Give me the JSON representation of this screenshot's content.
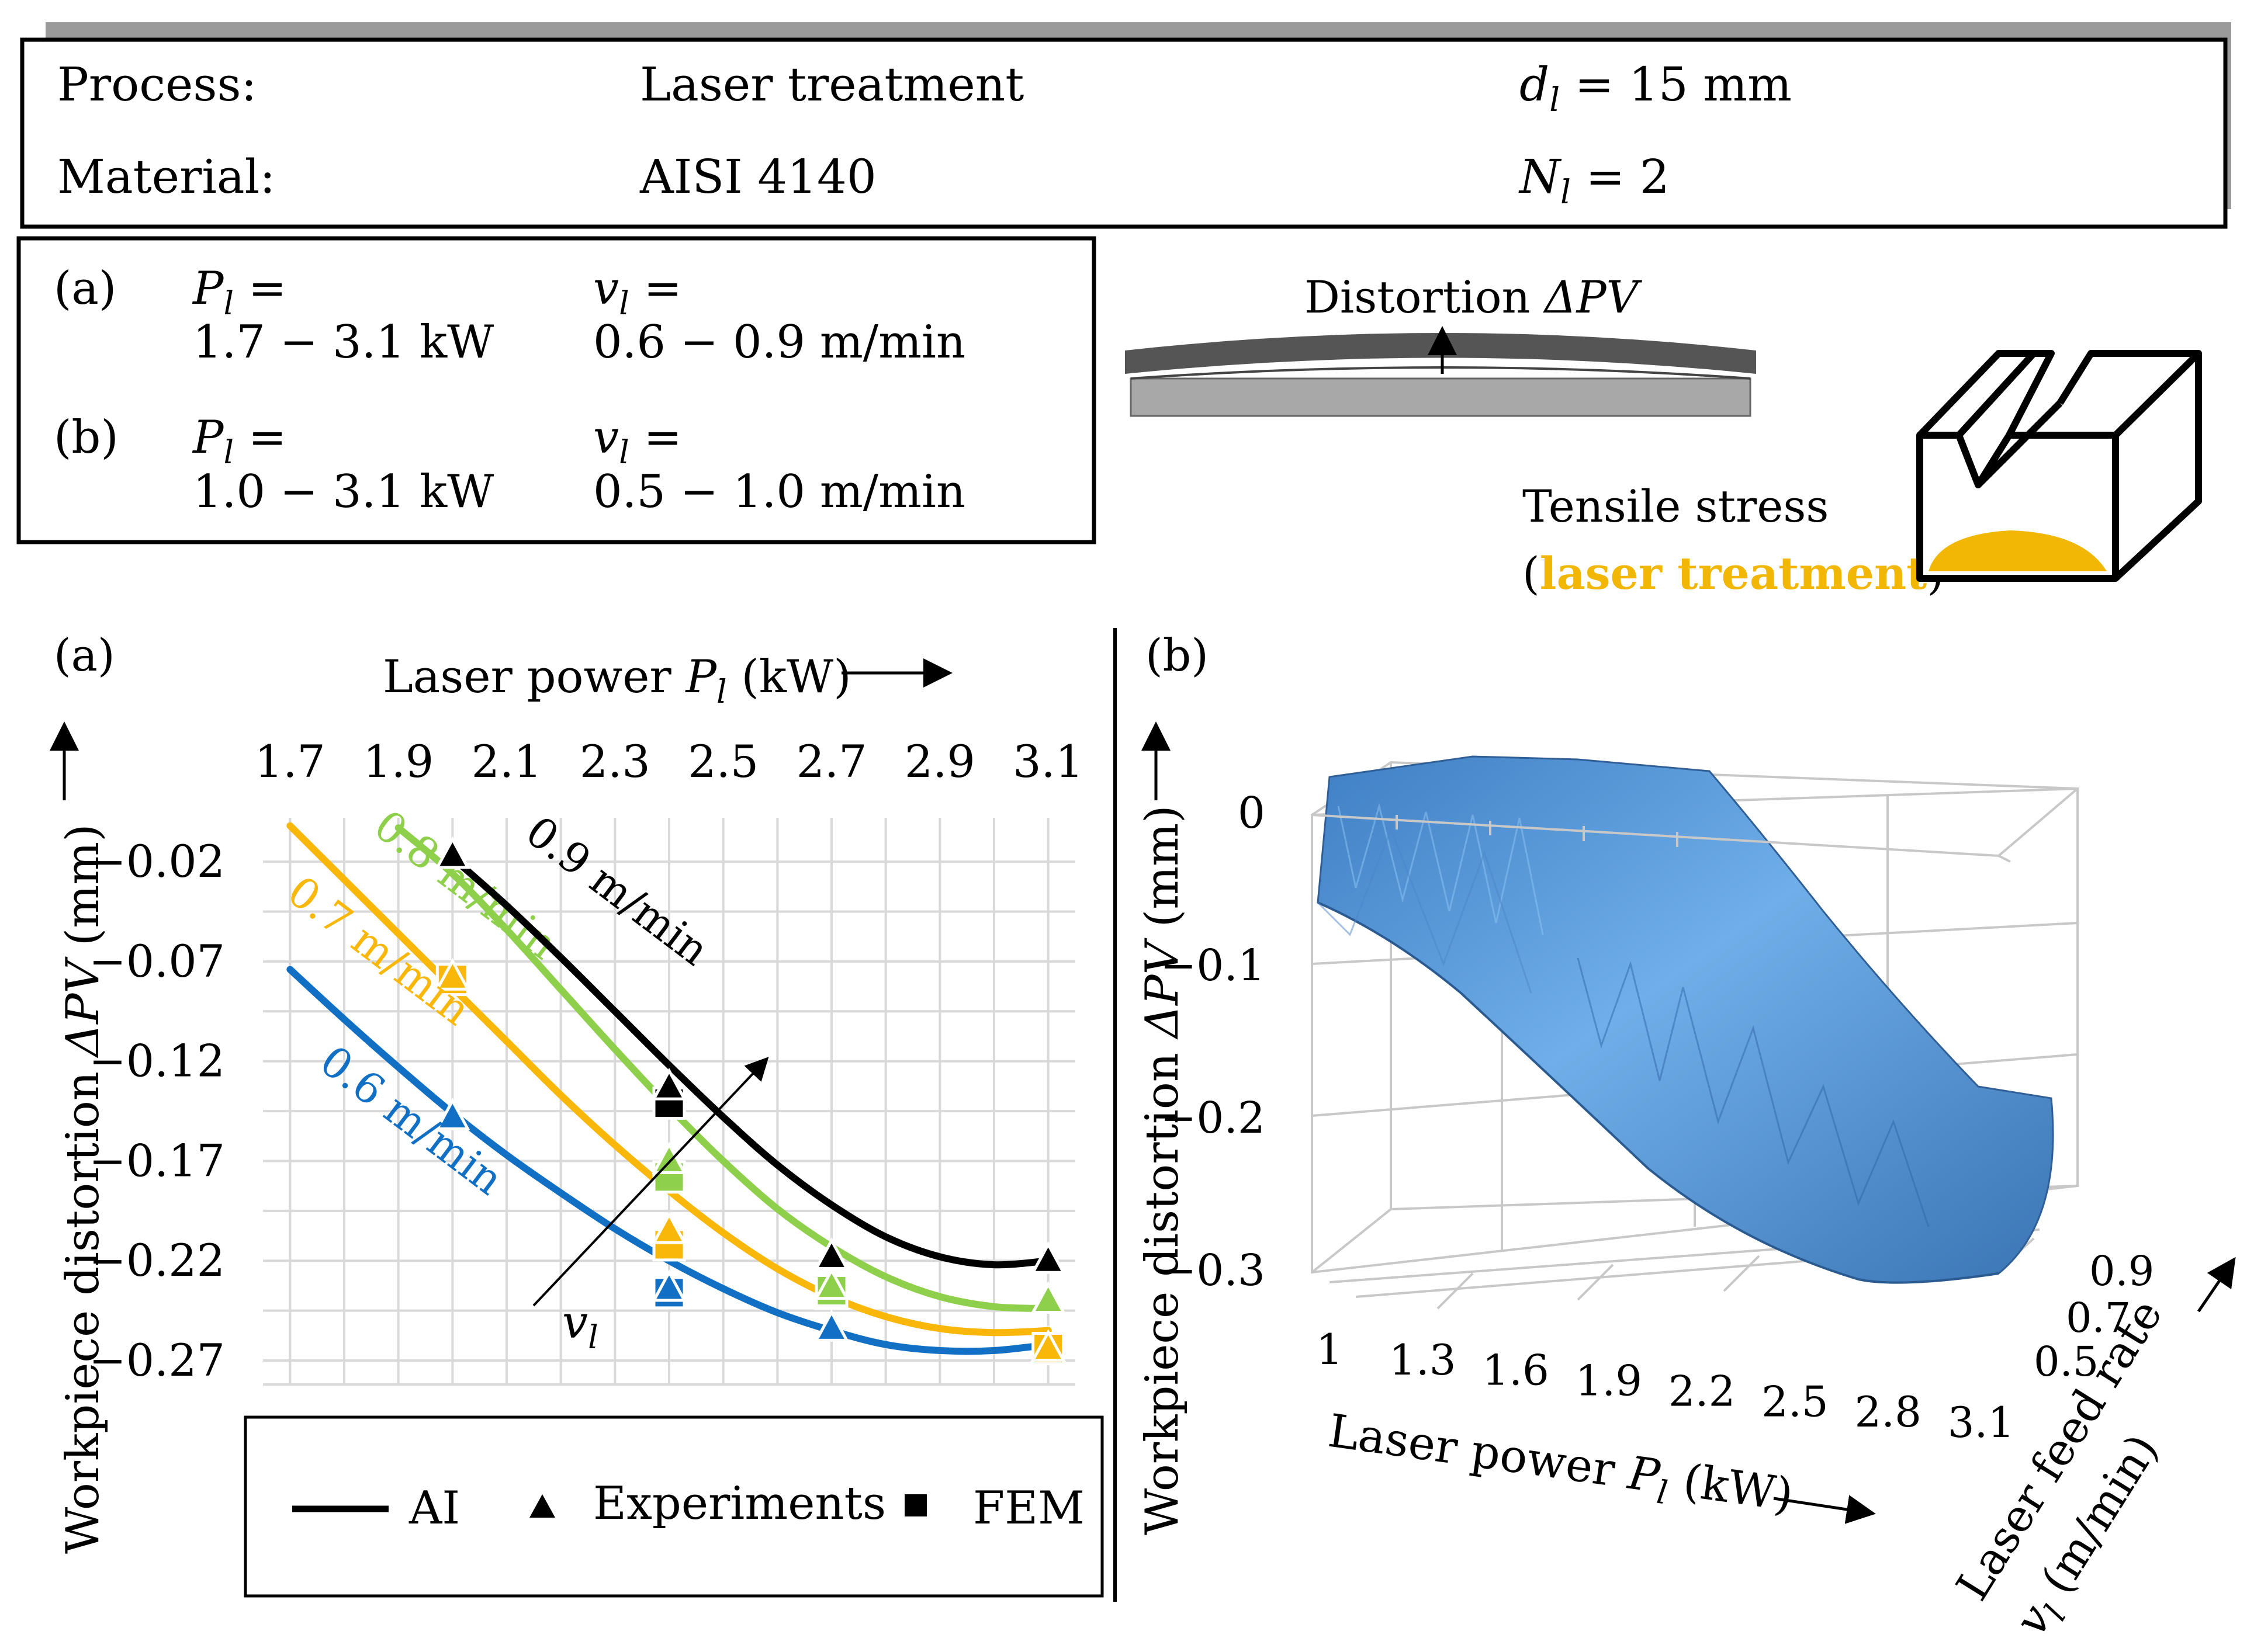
{
  "header": {
    "process_label": "Process:",
    "process_value": "Laser treatment",
    "diameter_symbol": "d",
    "diameter_sub": "l",
    "diameter_value": " = 15 mm",
    "material_label": "Material:",
    "material_value": "AISI 4140",
    "passes_symbol": "N",
    "passes_sub": "l",
    "passes_value": " = 2"
  },
  "params": {
    "a": {
      "label": "(a)",
      "power_symbol": "P",
      "power_sub": "l",
      "power_eq": " =",
      "power_range": "1.7 − 3.1 kW",
      "speed_symbol": "v",
      "speed_sub": "l",
      "speed_eq": " =",
      "speed_range": "0.6 − 0.9 m/min"
    },
    "b": {
      "label": "(b)",
      "power_symbol": "P",
      "power_sub": "l",
      "power_eq": " =",
      "power_range": "1.0 − 3.1 kW",
      "speed_symbol": "v",
      "speed_sub": "l",
      "speed_eq": " =",
      "speed_range": "0.5 − 1.0 m/min"
    }
  },
  "schematic": {
    "distortion_label": "Distortion ",
    "distortion_symbol": "ΔPV",
    "tensile_label": "Tensile stress",
    "paren_open": "(",
    "laser_label": "laser treatment",
    "paren_close": ")",
    "accent_color": "#F2B705",
    "bar_dark": "#555555",
    "bar_light": "#A8A8A8"
  },
  "chart_data": [
    {
      "type": "line",
      "panel": "(a)",
      "x_label_prefix": "Laser power ",
      "x_symbol": "P",
      "x_sub": "l",
      "x_unit": " (kW)",
      "y_label_prefix": "Workpiece distortion ",
      "y_symbol": "ΔPV",
      "y_unit": " (mm)",
      "x_ticks": [
        "1.7",
        "1.9",
        "2.1",
        "2.3",
        "2.5",
        "2.7",
        "2.9",
        "3.1"
      ],
      "y_ticks": [
        "−0.02",
        "−0.07",
        "−0.12",
        "−0.17",
        "−0.22",
        "−0.27"
      ],
      "xlim": [
        1.65,
        3.15
      ],
      "ylim": [
        -0.282,
        0.002
      ],
      "grid": true,
      "legend_position": "bottom",
      "arrow_label_symbol": "v",
      "arrow_label_sub": "l",
      "series": [
        {
          "name": "0.6 m/min",
          "color": "#1170C4",
          "label_pos": [
            1.75,
            -0.123
          ],
          "label_angle": 37,
          "ai": [
            [
              1.7,
              -0.074
            ],
            [
              1.8,
              -0.099
            ],
            [
              1.9,
              -0.123
            ],
            [
              2.0,
              -0.146
            ],
            [
              2.1,
              -0.167
            ],
            [
              2.2,
              -0.186
            ],
            [
              2.3,
              -0.204
            ],
            [
              2.4,
              -0.22
            ],
            [
              2.5,
              -0.234
            ],
            [
              2.6,
              -0.246
            ],
            [
              2.7,
              -0.255
            ],
            [
              2.8,
              -0.262
            ],
            [
              2.9,
              -0.265
            ],
            [
              3.0,
              -0.265
            ],
            [
              3.1,
              -0.262
            ]
          ],
          "experiments": [
            [
              2.0,
              -0.148
            ],
            [
              2.4,
              -0.234
            ],
            [
              2.7,
              -0.254
            ],
            [
              3.1,
              -0.262
            ]
          ],
          "fem": [
            [
              2.4,
              -0.236
            ]
          ]
        },
        {
          "name": "0.7 m/min",
          "color": "#F9B70A",
          "label_pos": [
            1.69,
            -0.038
          ],
          "label_angle": 37,
          "ai": [
            [
              1.7,
              -0.002
            ],
            [
              1.8,
              -0.029
            ],
            [
              1.9,
              -0.056
            ],
            [
              2.0,
              -0.083
            ],
            [
              2.1,
              -0.11
            ],
            [
              2.2,
              -0.137
            ],
            [
              2.3,
              -0.162
            ],
            [
              2.4,
              -0.185
            ],
            [
              2.5,
              -0.206
            ],
            [
              2.6,
              -0.224
            ],
            [
              2.7,
              -0.238
            ],
            [
              2.8,
              -0.248
            ],
            [
              2.9,
              -0.254
            ],
            [
              3.0,
              -0.256
            ],
            [
              3.1,
              -0.255
            ]
          ],
          "experiments": [
            [
              2.0,
              -0.078
            ],
            [
              2.4,
              -0.205
            ],
            [
              2.7,
              -0.238
            ],
            [
              3.1,
              -0.264
            ]
          ],
          "fem": [
            [
              2.0,
              -0.079
            ],
            [
              2.4,
              -0.212
            ],
            [
              2.7,
              -0.234
            ],
            [
              3.1,
              -0.264
            ]
          ]
        },
        {
          "name": "0.8 m/min",
          "color": "#8ED04B",
          "label_pos": [
            1.85,
            -0.005
          ],
          "label_angle": 37,
          "ai": [
            [
              1.9,
              -0.003
            ],
            [
              2.0,
              -0.026
            ],
            [
              2.1,
              -0.054
            ],
            [
              2.2,
              -0.084
            ],
            [
              2.3,
              -0.114
            ],
            [
              2.4,
              -0.143
            ],
            [
              2.5,
              -0.17
            ],
            [
              2.6,
              -0.194
            ],
            [
              2.7,
              -0.213
            ],
            [
              2.8,
              -0.228
            ],
            [
              2.9,
              -0.238
            ],
            [
              3.0,
              -0.243
            ],
            [
              3.1,
              -0.244
            ]
          ],
          "experiments": [
            [
              2.4,
              -0.17
            ],
            [
              2.7,
              -0.233
            ],
            [
              3.1,
              -0.24
            ]
          ],
          "fem": [
            [
              2.4,
              -0.178
            ],
            [
              2.7,
              -0.235
            ]
          ]
        },
        {
          "name": "0.9 m/min",
          "color": "#000000",
          "label_pos": [
            2.13,
            -0.008
          ],
          "label_angle": 37,
          "ai": [
            [
              2.0,
              -0.018
            ],
            [
              2.1,
              -0.042
            ],
            [
              2.2,
              -0.068
            ],
            [
              2.3,
              -0.095
            ],
            [
              2.4,
              -0.122
            ],
            [
              2.5,
              -0.148
            ],
            [
              2.6,
              -0.172
            ],
            [
              2.7,
              -0.192
            ],
            [
              2.8,
              -0.208
            ],
            [
              2.9,
              -0.218
            ],
            [
              3.0,
              -0.222
            ],
            [
              3.1,
              -0.22
            ]
          ],
          "experiments": [
            [
              2.0,
              -0.017
            ],
            [
              2.4,
              -0.133
            ],
            [
              2.7,
              -0.218
            ],
            [
              3.1,
              -0.22
            ]
          ],
          "fem": [
            [
              2.4,
              -0.141
            ]
          ]
        }
      ],
      "legend": [
        {
          "label": "AI",
          "kind": "line"
        },
        {
          "label": "Experiments",
          "kind": "triangle"
        },
        {
          "label": "FEM",
          "kind": "square"
        }
      ]
    },
    {
      "type": "surface3d",
      "panel": "(b)",
      "x_label_prefix": "Laser power ",
      "x_symbol": "P",
      "x_sub": "l",
      "x_unit": " (kW)",
      "y_label_line1": "Laser feed rate",
      "y_label_symbol": "v",
      "y_label_sub": "l",
      "y_label_unit": " (m/min)",
      "z_label_prefix": "Workpiece distortion ",
      "z_symbol": "ΔPV",
      "z_unit": " (mm)",
      "x_ticks": [
        "1",
        "1.3",
        "1.6",
        "1.9",
        "2.2",
        "2.5",
        "2.8",
        "3.1"
      ],
      "y_ticks": [
        "0.5",
        "0.7",
        "0.9"
      ],
      "z_ticks": [
        "0",
        "−0.1",
        "−0.2",
        "−0.3"
      ],
      "xlim": [
        1.0,
        3.1
      ],
      "zlim": [
        -0.3,
        0.0
      ],
      "grid": true,
      "surface_color": "#5E9AD6",
      "profile_front": [
        [
          1.0,
          -0.06
        ],
        [
          1.3,
          -0.08
        ],
        [
          1.6,
          -0.1
        ],
        [
          1.9,
          -0.13
        ],
        [
          2.2,
          -0.17
        ],
        [
          2.5,
          -0.22
        ],
        [
          2.8,
          -0.26
        ],
        [
          3.1,
          -0.27
        ]
      ],
      "profile_back": [
        [
          1.0,
          0.0
        ],
        [
          1.3,
          0.0
        ],
        [
          1.6,
          0.0
        ],
        [
          1.9,
          0.0
        ],
        [
          2.2,
          -0.04
        ],
        [
          2.5,
          -0.13
        ],
        [
          2.8,
          -0.21
        ],
        [
          3.1,
          -0.24
        ]
      ]
    }
  ]
}
